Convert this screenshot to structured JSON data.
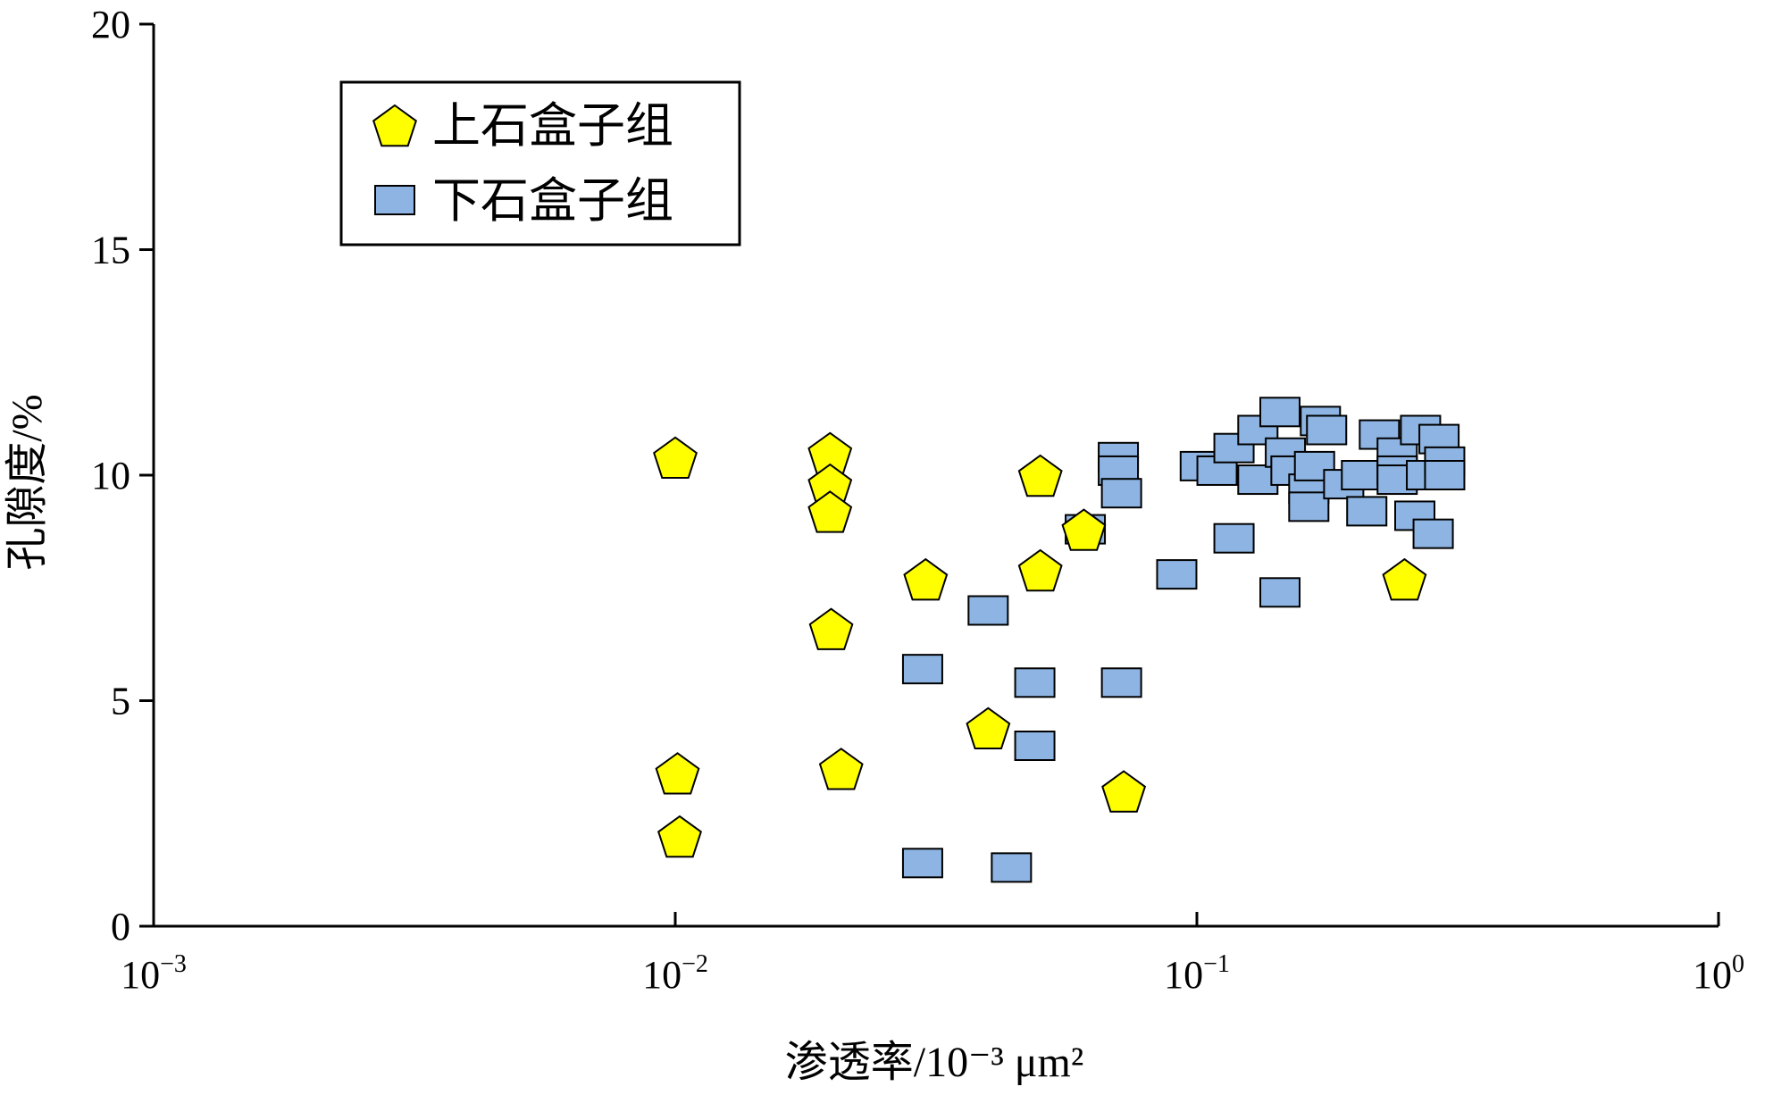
{
  "chart_data": {
    "type": "scatter",
    "title": "",
    "xlabel": "渗透率/10⁻³ μm²",
    "ylabel": "孔隙度/%",
    "xscale": "log",
    "xlim": [
      0.001,
      1
    ],
    "ylim": [
      0,
      20
    ],
    "grid": false,
    "legend_position": "top-left",
    "x_ticks": [
      {
        "base": "10",
        "exp": "−3",
        "value": 0.001
      },
      {
        "base": "10",
        "exp": "−2",
        "value": 0.01
      },
      {
        "base": "10",
        "exp": "−1",
        "value": 0.1
      },
      {
        "base": "10",
        "exp": "0",
        "value": 1
      }
    ],
    "y_ticks": [
      "0",
      "5",
      "10",
      "15",
      "20"
    ],
    "series": [
      {
        "name": "上石盒子组",
        "marker": "pentagon",
        "color": "#ffff00",
        "points": [
          [
            0.01,
            10.4
          ],
          [
            0.0101,
            3.4
          ],
          [
            0.0102,
            2.0
          ],
          [
            0.0198,
            10.5
          ],
          [
            0.0198,
            9.8
          ],
          [
            0.0198,
            9.2
          ],
          [
            0.0199,
            6.6
          ],
          [
            0.0208,
            3.5
          ],
          [
            0.0302,
            7.7
          ],
          [
            0.0398,
            4.4
          ],
          [
            0.0501,
            10.0
          ],
          [
            0.0501,
            7.9
          ],
          [
            0.0607,
            8.8
          ],
          [
            0.0724,
            3.0
          ],
          [
            0.25,
            7.7
          ]
        ]
      },
      {
        "name": "下石盒子组",
        "marker": "square",
        "color": "#8db4e2",
        "points": [
          [
            0.0298,
            5.7
          ],
          [
            0.0298,
            1.4
          ],
          [
            0.0398,
            7.0
          ],
          [
            0.0441,
            1.3
          ],
          [
            0.0489,
            5.4
          ],
          [
            0.0489,
            4.0
          ],
          [
            0.0611,
            8.8
          ],
          [
            0.0707,
            10.4
          ],
          [
            0.0707,
            10.1
          ],
          [
            0.0717,
            9.6
          ],
          [
            0.0717,
            5.4
          ],
          [
            0.0915,
            7.8
          ],
          [
            0.1015,
            10.2
          ],
          [
            0.1093,
            10.1
          ],
          [
            0.1178,
            10.6
          ],
          [
            0.1178,
            8.6
          ],
          [
            0.1309,
            11.0
          ],
          [
            0.1309,
            9.9
          ],
          [
            0.1443,
            11.4
          ],
          [
            0.1443,
            7.4
          ],
          [
            0.1478,
            10.5
          ],
          [
            0.1515,
            10.1
          ],
          [
            0.1639,
            9.7
          ],
          [
            0.1639,
            9.3
          ],
          [
            0.1681,
            10.2
          ],
          [
            0.1725,
            11.2
          ],
          [
            0.1773,
            11.0
          ],
          [
            0.1912,
            9.8
          ],
          [
            0.2068,
            10.0
          ],
          [
            0.2117,
            9.2
          ],
          [
            0.2238,
            10.9
          ],
          [
            0.2421,
            10.5
          ],
          [
            0.2421,
            10.1
          ],
          [
            0.2421,
            9.9
          ],
          [
            0.2617,
            9.1
          ],
          [
            0.2684,
            11.0
          ],
          [
            0.2755,
            10.0
          ],
          [
            0.2838,
            8.7
          ],
          [
            0.2912,
            10.8
          ],
          [
            0.2986,
            10.3
          ],
          [
            0.2986,
            10.0
          ]
        ]
      }
    ]
  }
}
